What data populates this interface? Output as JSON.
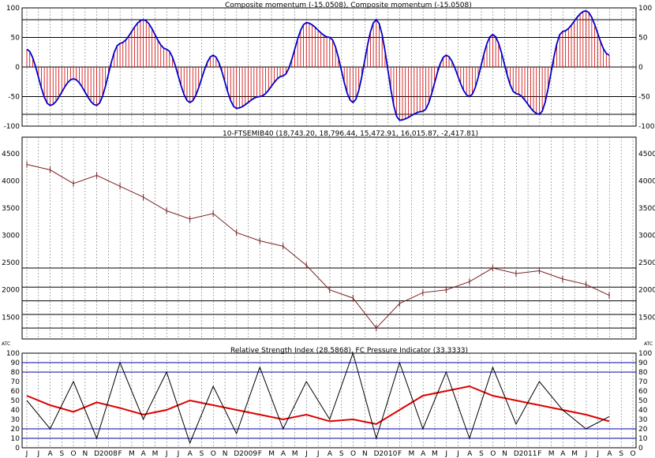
{
  "chart_data": [
    {
      "type": "line",
      "title": "Composite momentum (-15.0508), Composite momentum (-15.0508)",
      "ylim": [
        -100,
        100
      ],
      "y_ticks": [
        "100",
        "50",
        "0",
        "-50",
        "-100"
      ],
      "reference_lines": [
        80,
        50,
        0,
        -50,
        -80
      ],
      "colors": {
        "line": "#0000cc",
        "histogram": "#cc0000"
      },
      "series": [
        {
          "x": [
            0,
            1,
            2,
            3,
            4,
            5,
            6,
            7,
            8,
            9,
            10,
            11,
            12,
            13,
            14,
            15,
            16,
            17,
            18,
            19,
            20,
            21,
            22,
            23,
            24,
            25
          ],
          "values": [
            30,
            -65,
            -20,
            -65,
            40,
            80,
            30,
            -60,
            20,
            -70,
            -50,
            -15,
            75,
            50,
            -60,
            80,
            -90,
            -75,
            20,
            -50,
            55,
            -45,
            -80,
            60,
            95,
            20
          ]
        }
      ]
    },
    {
      "type": "line",
      "title": "10-FTSEMIB40 (18,743.20, 18,796.44, 15,472.91, 16,015.87, -2,417.81)",
      "ylim": [
        1100,
        4800
      ],
      "y_ticks": [
        "4500",
        "4000",
        "3500",
        "3000",
        "2500",
        "2000",
        "1500"
      ],
      "reference_lines": [
        2400,
        2050,
        1800,
        1550,
        1300
      ],
      "colors": {
        "price": "#7a2020",
        "gray_marker": "#808080",
        "buy_arrow": "#0033ff",
        "sell_arrow": "#ee0000"
      },
      "series": [
        {
          "x": [
            0,
            2,
            4,
            6,
            8,
            10,
            12,
            14,
            16,
            18,
            20,
            22,
            24,
            26,
            28,
            30,
            32,
            34,
            36,
            38,
            40,
            42,
            44,
            46,
            48,
            50
          ],
          "values": [
            4300,
            4200,
            3950,
            4100,
            3900,
            3700,
            3450,
            3300,
            3400,
            3050,
            2900,
            2800,
            2450,
            2000,
            1850,
            1300,
            1750,
            1950,
            2000,
            2150,
            2400,
            2300,
            2350,
            2200,
            2100,
            1900
          ]
        }
      ]
    },
    {
      "type": "line",
      "title": "Relative Strength Index (28.5868), FC Pressure Indicator (33.3333)",
      "ylim": [
        0,
        100
      ],
      "y_ticks": [
        "100",
        "90",
        "80",
        "70",
        "60",
        "50",
        "40",
        "30",
        "20",
        "10",
        "0"
      ],
      "reference_lines": [
        90,
        80,
        20,
        10
      ],
      "colors": {
        "rsi": "#dd0000",
        "pressure": "#000000",
        "guides": "#0000aa"
      },
      "series": [
        {
          "x": [
            0,
            2,
            4,
            6,
            8,
            10,
            12,
            14,
            16,
            18,
            20,
            22,
            24,
            26,
            28,
            30,
            32,
            34,
            36,
            38,
            40,
            42,
            44,
            46,
            48,
            50
          ],
          "values": [
            55,
            45,
            38,
            48,
            42,
            35,
            40,
            50,
            45,
            40,
            35,
            30,
            35,
            28,
            30,
            25,
            40,
            55,
            60,
            65,
            55,
            50,
            45,
            40,
            35,
            28
          ]
        },
        {
          "x": [
            0,
            2,
            4,
            6,
            8,
            10,
            12,
            14,
            16,
            18,
            20,
            22,
            24,
            26,
            28,
            30,
            32,
            34,
            36,
            38,
            40,
            42,
            44,
            46,
            48,
            50
          ],
          "values": [
            50,
            20,
            70,
            10,
            90,
            30,
            80,
            5,
            65,
            15,
            85,
            20,
            70,
            30,
            100,
            10,
            90,
            20,
            80,
            10,
            85,
            25,
            70,
            40,
            20,
            33
          ]
        }
      ]
    }
  ],
  "x_axis": {
    "tick_labels": [
      "J",
      "J",
      "A",
      "S",
      "O",
      "N",
      "D",
      "2008",
      "F",
      "M",
      "A",
      "M",
      "J",
      "J",
      "A",
      "S",
      "O",
      "N",
      "D",
      "2009",
      "F",
      "M",
      "A",
      "M",
      "J",
      "J",
      "A",
      "S",
      "O",
      "N",
      "D",
      "2010",
      "F",
      "M",
      "A",
      "M",
      "J",
      "J",
      "A",
      "S",
      "O",
      "N",
      "D",
      "2011",
      "F",
      "M",
      "A",
      "M",
      "J",
      "J",
      "A",
      "S",
      "O"
    ]
  },
  "watermark_left": "ATC",
  "watermark_right": "ATC"
}
